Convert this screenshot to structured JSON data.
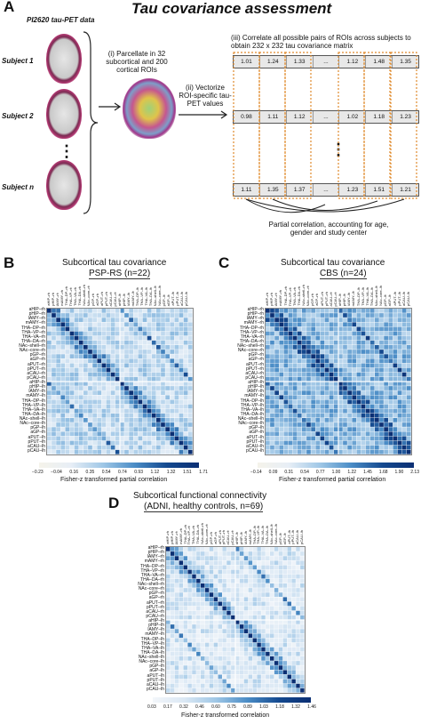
{
  "panel_a": {
    "letter": "A",
    "title": "Tau covariance assessment",
    "dataset": "PI2620 tau-PET data",
    "subjects": [
      "Subject 1",
      "Subject 2",
      "Subject n"
    ],
    "ellipsis": "⋮",
    "step_i": "(i) Parcellate in 32 subcortical and 200 cortical ROIs",
    "step_ii": "(ii) Vectorize ROI-specific tau-PET values",
    "step_iii": "(iii) Correlate all possible pairs of ROIs across subjects to obtain 232 x 232 tau covariance matrix",
    "step_iii_sub": "(→)",
    "rows": [
      [
        "1.01",
        "1.24",
        "1.33",
        "...",
        "1.12",
        "1.48",
        "1.35"
      ],
      [
        "0.98",
        "1.11",
        "1.12",
        "...",
        "1.02",
        "1.18",
        "1.23"
      ],
      [
        "1.11",
        "1.35",
        "1.37",
        "...",
        "1.23",
        "1.51",
        "1.21"
      ]
    ],
    "vdots": "⋮",
    "partial_note": "Partial correlation, accounting for age, gender and study center"
  },
  "panel_b": {
    "letter": "B",
    "title": "Subcortical tau covariance",
    "subtitle": "PSP-RS (n=22)",
    "ticks": [
      "−0.23",
      "−0.04",
      "0.16",
      "0.35",
      "0.54",
      "0.74",
      "0.93",
      "1.12",
      "1.32",
      "1.51",
      "1.71"
    ],
    "colorbar_label": "Fisher-z transformed partial correlation"
  },
  "panel_c": {
    "letter": "C",
    "title": "Subcortical tau covariance",
    "subtitle": "CBS (n=24)",
    "ticks": [
      "−0.14",
      "0.09",
      "0.31",
      "0.54",
      "0.77",
      "1.00",
      "1.22",
      "1.45",
      "1.68",
      "1.90",
      "2.13"
    ],
    "colorbar_label": "Fisher-z transformed partial correlation"
  },
  "panel_d": {
    "letter": "D",
    "title": "Subcortical functional connectivity",
    "subtitle": "(ADNI, healthy controls, n=69)",
    "ticks": [
      "0.03",
      "0.17",
      "0.32",
      "0.46",
      "0.60",
      "0.75",
      "0.89",
      "1.03",
      "1.18",
      "1.32",
      "1.46"
    ],
    "colorbar_label": "Fisher-z transformed correlation"
  },
  "roi_labels": [
    "aHIP–rh",
    "pHIP–rh",
    "lAMY–rh",
    "mAMY–rh",
    "THA–DP–rh",
    "THA–VP–rh",
    "THA–VA–rh",
    "THA–DA–rh",
    "NAc–shell–rh",
    "NAc–core–rh",
    "pGP–rh",
    "aGP–rh",
    "aPUT–rh",
    "pPUT–rh",
    "aCAU–rh",
    "pCAU–rh",
    "aHIP–lh",
    "pHIP–lh",
    "lAMY–lh",
    "mAMY–lh",
    "THA–DP–lh",
    "THA–VP–lh",
    "THA–VA–lh",
    "THA–DA–lh",
    "NAc–shell–lh",
    "NAc–core–lh",
    "pGP–lh",
    "aGP–lh",
    "aPUT–lh",
    "pPUT–lh",
    "aCAU–lh",
    "pCAU–lh"
  ],
  "colors": {
    "matrix_high": "#0b2f73",
    "matrix_mid": "#5a9fd0",
    "matrix_low": "#e9f2f9",
    "row_border": "#e08a2c",
    "arrow": "#222"
  }
}
